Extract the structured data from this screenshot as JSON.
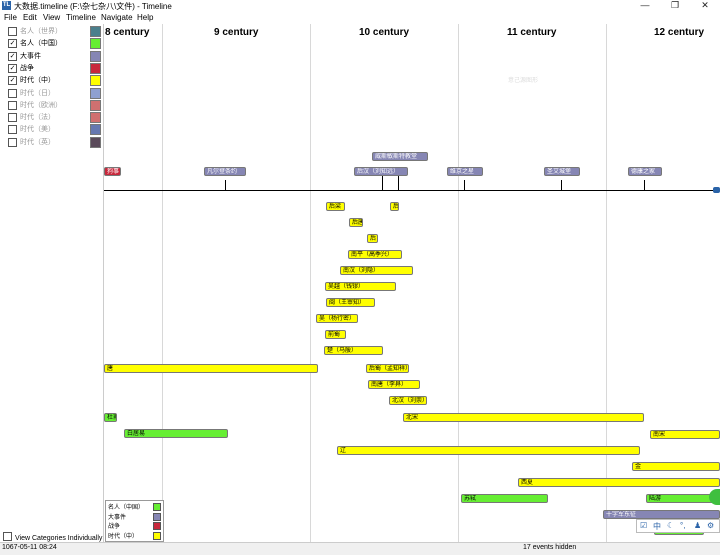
{
  "window": {
    "title": "大数据.timeline (F:\\杂七杂八\\文件) - Timeline",
    "app_icon_text": "TL",
    "min_glyph": "—",
    "max_glyph": "❐",
    "close_glyph": "✕"
  },
  "menu": [
    "File",
    "Edit",
    "View",
    "Timeline",
    "Navigate",
    "Help"
  ],
  "categories": [
    {
      "label": "名人（世界）",
      "checked": false,
      "color": "#4b7f8c"
    },
    {
      "label": "名人（中国）",
      "checked": true,
      "color": "#66ee33"
    },
    {
      "label": "大事件",
      "checked": true,
      "color": "#8686b4"
    },
    {
      "label": "战争",
      "checked": true,
      "color": "#c8283c"
    },
    {
      "label": "时代（中）",
      "checked": true,
      "color": "#ffff00"
    },
    {
      "label": "时代（日）",
      "checked": false,
      "color": "#8fa0d0"
    },
    {
      "label": "时代（欧洲）",
      "checked": false,
      "color": "#d07070"
    },
    {
      "label": "时代（法）",
      "checked": false,
      "color": "#d07070"
    },
    {
      "label": "时代（美）",
      "checked": false,
      "color": "#6678b0"
    },
    {
      "label": "时代（英）",
      "checked": false,
      "color": "#5a4a5a"
    }
  ],
  "view_individually": {
    "label": "View Categories Individually",
    "checked": false
  },
  "centuries": [
    "8 century",
    "9 century",
    "10 century",
    "11 century",
    "12 century"
  ],
  "top_events": [
    {
      "text": "威斯敏斯特教堂",
      "cls": "b"
    },
    {
      "text": "凡尔登条约",
      "cls": "b"
    },
    {
      "text": "后汉（刘知远）",
      "cls": "b"
    },
    {
      "text": "维京之星",
      "cls": "b"
    },
    {
      "text": "圣艾城堡",
      "cls": "b"
    },
    {
      "text": "德康之家",
      "cls": "b"
    },
    {
      "text": "狗事",
      "cls": "r"
    }
  ],
  "period_events": [
    {
      "text": "后梁",
      "cls": "y"
    },
    {
      "text": "后",
      "cls": "y"
    },
    {
      "text": "后唐",
      "cls": "y"
    },
    {
      "text": "后",
      "cls": "y"
    },
    {
      "text": "南平（高季兴）",
      "cls": "y"
    },
    {
      "text": "南汉（刘隐）",
      "cls": "y"
    },
    {
      "text": "吴越（钱镠）",
      "cls": "y"
    },
    {
      "text": "闽（王审知）",
      "cls": "y"
    },
    {
      "text": "吴（杨行密）",
      "cls": "y"
    },
    {
      "text": "前蜀",
      "cls": "y"
    },
    {
      "text": "楚（马殷）",
      "cls": "y"
    },
    {
      "text": "唐",
      "cls": "y"
    },
    {
      "text": "后蜀（孟知祥）",
      "cls": "y"
    },
    {
      "text": "南唐（李昪）",
      "cls": "y"
    },
    {
      "text": "北汉（刘崇）",
      "cls": "y"
    },
    {
      "text": "杜甫",
      "cls": "g"
    },
    {
      "text": "北宋",
      "cls": "y"
    },
    {
      "text": "白居易",
      "cls": "g"
    },
    {
      "text": "南宋",
      "cls": "y"
    },
    {
      "text": "辽",
      "cls": "y"
    },
    {
      "text": "金",
      "cls": "y"
    },
    {
      "text": "西夏",
      "cls": "y"
    },
    {
      "text": "苏轼",
      "cls": "g"
    },
    {
      "text": "陆游",
      "cls": "g"
    },
    {
      "text": "十字军东征",
      "cls": "b"
    },
    {
      "text": "辛弃",
      "cls": "g"
    }
  ],
  "legend": [
    {
      "label": "名人（中国）",
      "color": "#66ee33"
    },
    {
      "label": "大事件",
      "color": "#8686b4"
    },
    {
      "label": "战争",
      "color": "#c8283c"
    },
    {
      "label": "时代（中）",
      "color": "#ffff00"
    }
  ],
  "status": {
    "date": "1067-05-11 08:24",
    "hidden": "17 events hidden"
  },
  "ime": [
    "中",
    "☾",
    "°,",
    "⚙"
  ],
  "watermark": "意己源图形"
}
